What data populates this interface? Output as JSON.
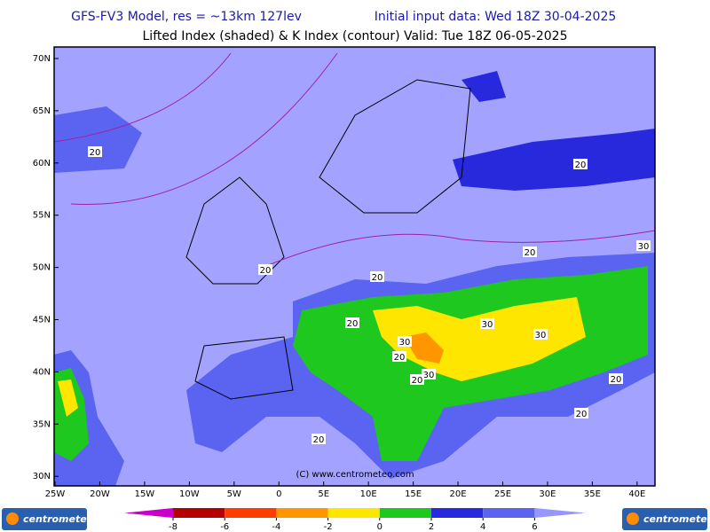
{
  "header": {
    "title": "GFS-FV3 Model, res = ~13km 127lev",
    "init": "Initial input data: Wed 18Z 30-04-2025",
    "subtitle": "Lifted Index (shaded) & K Index (contour) Valid: Tue 18Z 06-05-2025"
  },
  "map": {
    "lat_labels": [
      "70N",
      "65N",
      "60N",
      "55N",
      "50N",
      "45N",
      "40N",
      "35N",
      "30N"
    ],
    "lon_labels": [
      "25W",
      "20W",
      "15W",
      "10W",
      "5W",
      "0",
      "5E",
      "10E",
      "15E",
      "20E",
      "25E",
      "30E",
      "35E",
      "40E"
    ],
    "contour_labels": [
      20,
      20,
      30,
      20,
      20,
      20,
      20,
      30,
      30,
      30,
      20,
      30,
      20,
      20,
      20,
      20
    ],
    "credit": "(C) www.centrometeo.com"
  },
  "colorbar": {
    "labels": [
      "-8",
      "-6",
      "-4",
      "-2",
      "0",
      "2",
      "4",
      "6"
    ],
    "colors": [
      "#c800c8",
      "#b40000",
      "#ff3c00",
      "#ff9600",
      "#ffe600",
      "#1ec81e",
      "#2828dc",
      "#5a64f0",
      "#9696ff"
    ]
  },
  "logos": {
    "left": "centrometeo",
    "right": "centrometeo"
  }
}
